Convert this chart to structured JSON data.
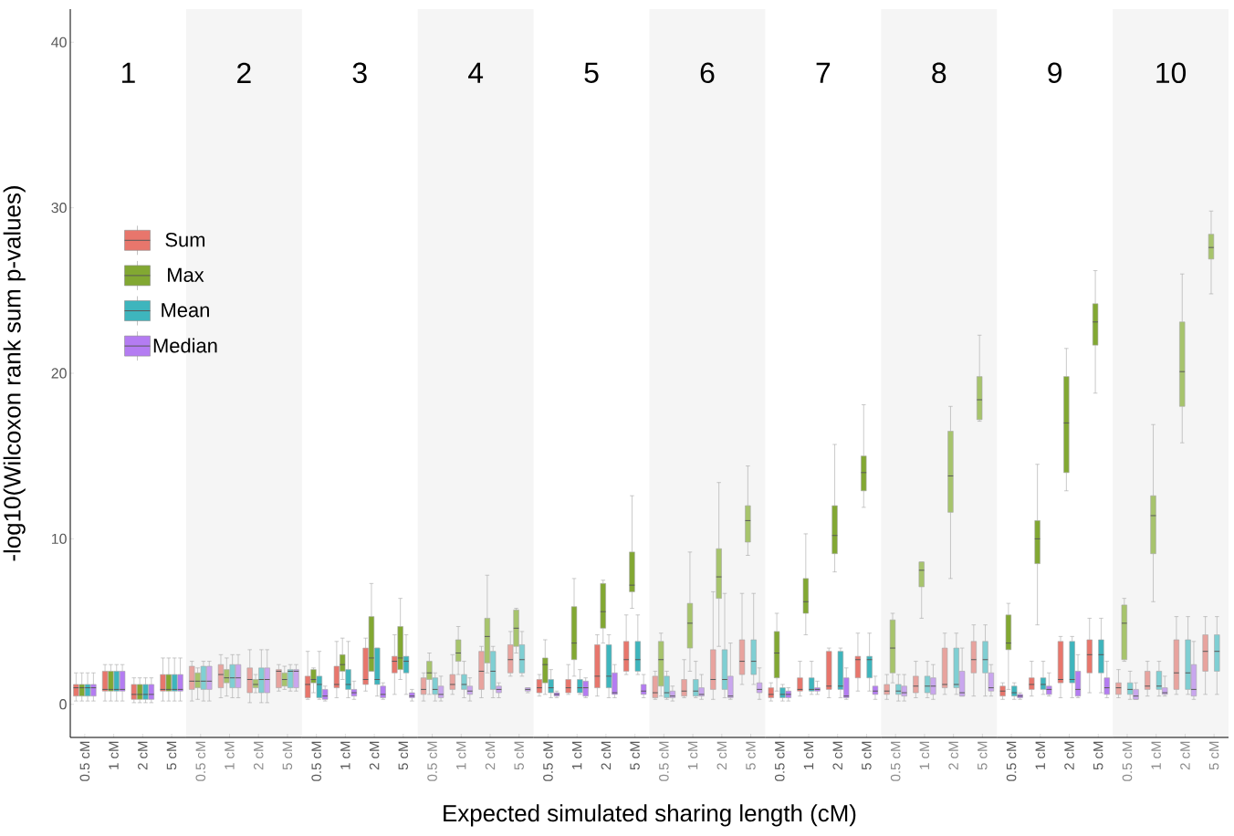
{
  "chart_data": [
    {
      "type": "box",
      "title": "1",
      "ylabel": "-log10(Wilcoxon rank sum p-values)",
      "categories": [
        "0.5 cM",
        "1 cM",
        "2 cM",
        "5 cM"
      ],
      "ylim": [
        -2,
        42
      ],
      "yticks": [
        0,
        10,
        20,
        30,
        40
      ],
      "legend": "right",
      "series": [
        {
          "name": "Sum",
          "color": "#e8766c",
          "boxes": [
            {
              "low": 0.2,
              "q1": 0.5,
              "median": 1.0,
              "q3": 1.2,
              "high": 1.9
            },
            {
              "low": 0.2,
              "q1": 0.8,
              "median": 0.9,
              "q3": 2.0,
              "high": 2.4
            },
            {
              "low": 0.1,
              "q1": 0.3,
              "median": 0.6,
              "q3": 1.2,
              "high": 1.6
            },
            {
              "low": 0.2,
              "q1": 0.8,
              "median": 0.9,
              "q3": 1.8,
              "high": 2.8
            }
          ]
        },
        {
          "name": "Max",
          "color": "#82a832",
          "boxes": [
            {
              "low": 0.2,
              "q1": 0.5,
              "median": 1.0,
              "q3": 1.2,
              "high": 1.9
            },
            {
              "low": 0.2,
              "q1": 0.8,
              "median": 0.9,
              "q3": 2.0,
              "high": 2.4
            },
            {
              "low": 0.1,
              "q1": 0.3,
              "median": 0.6,
              "q3": 1.2,
              "high": 1.6
            },
            {
              "low": 0.2,
              "q1": 0.8,
              "median": 0.9,
              "q3": 1.8,
              "high": 2.8
            }
          ]
        },
        {
          "name": "Mean",
          "color": "#3eb5bd",
          "boxes": [
            {
              "low": 0.2,
              "q1": 0.5,
              "median": 1.0,
              "q3": 1.2,
              "high": 1.9
            },
            {
              "low": 0.2,
              "q1": 0.8,
              "median": 0.9,
              "q3": 2.0,
              "high": 2.4
            },
            {
              "low": 0.1,
              "q1": 0.3,
              "median": 0.6,
              "q3": 1.2,
              "high": 1.6
            },
            {
              "low": 0.2,
              "q1": 0.8,
              "median": 0.9,
              "q3": 1.8,
              "high": 2.8
            }
          ]
        },
        {
          "name": "Median",
          "color": "#b47cf2",
          "boxes": [
            {
              "low": 0.2,
              "q1": 0.5,
              "median": 1.0,
              "q3": 1.2,
              "high": 1.9
            },
            {
              "low": 0.2,
              "q1": 0.8,
              "median": 0.9,
              "q3": 2.0,
              "high": 2.4
            },
            {
              "low": 0.1,
              "q1": 0.3,
              "median": 0.6,
              "q3": 1.2,
              "high": 1.6
            },
            {
              "low": 0.2,
              "q1": 0.8,
              "median": 0.9,
              "q3": 1.8,
              "high": 2.8
            }
          ]
        }
      ]
    },
    {
      "type": "box",
      "title": "2",
      "categories": [
        "0.5 cM",
        "1 cM",
        "2 cM",
        "5 cM"
      ],
      "ylim": [
        -2,
        42
      ],
      "yticks": [
        0,
        10,
        20,
        30,
        40
      ],
      "tick_labels": "x",
      "series": [
        {
          "color": "#e8a39e",
          "boxes": [
            {
              "low": 0.2,
              "q1": 0.9,
              "median": 1.4,
              "q3": 2.3,
              "high": 2.6
            },
            {
              "low": 0.4,
              "q1": 1.0,
              "median": 1.8,
              "q3": 2.4,
              "high": 3.0
            },
            {
              "low": 0.1,
              "q1": 0.7,
              "median": 1.5,
              "q3": 2.2,
              "high": 3.3
            },
            {
              "low": 0.8,
              "q1": 1.0,
              "median": 2.0,
              "q3": 2.1,
              "high": 2.4
            }
          ]
        },
        {
          "color": "#a7c46c",
          "boxes": [
            {
              "low": 0.3,
              "q1": 1.0,
              "median": 1.4,
              "q3": 1.9,
              "high": 2.2
            },
            {
              "low": 0.5,
              "q1": 1.3,
              "median": 1.6,
              "q3": 2.1,
              "high": 2.8
            },
            {
              "low": 0.7,
              "q1": 1.0,
              "median": 1.2,
              "q3": 1.5,
              "high": 1.8
            },
            {
              "low": 0.9,
              "q1": 1.1,
              "median": 1.5,
              "q3": 1.9,
              "high": 2.3
            }
          ]
        },
        {
          "color": "#7fcfd3",
          "boxes": [
            {
              "low": 0.2,
              "q1": 0.9,
              "median": 1.4,
              "q3": 2.3,
              "high": 2.6
            },
            {
              "low": 0.4,
              "q1": 1.0,
              "median": 1.6,
              "q3": 2.4,
              "high": 3.0
            },
            {
              "low": 0.1,
              "q1": 0.7,
              "median": 1.5,
              "q3": 2.2,
              "high": 3.3
            },
            {
              "low": 0.8,
              "q1": 1.0,
              "median": 2.0,
              "q3": 2.1,
              "high": 2.4
            }
          ]
        },
        {
          "color": "#c9a6ee",
          "boxes": [
            {
              "low": 0.2,
              "q1": 0.9,
              "median": 1.4,
              "q3": 2.3,
              "high": 2.6
            },
            {
              "low": 0.4,
              "q1": 1.0,
              "median": 1.6,
              "q3": 2.4,
              "high": 3.0
            },
            {
              "low": 0.1,
              "q1": 0.7,
              "median": 1.5,
              "q3": 2.2,
              "high": 3.3
            },
            {
              "low": 0.8,
              "q1": 1.0,
              "median": 2.0,
              "q3": 2.1,
              "high": 2.4
            }
          ]
        }
      ]
    },
    {
      "type": "box",
      "title": "3",
      "categories": [
        "0.5 cM",
        "1 cM",
        "2 cM",
        "5 cM"
      ],
      "ylim": [
        -2,
        42
      ],
      "yticks": [
        0,
        10,
        20,
        30,
        40
      ],
      "tick_labels": "x",
      "series": [
        {
          "color": "#e8766c",
          "boxes": [
            {
              "low": 0.3,
              "q1": 0.4,
              "median": 1.2,
              "q3": 1.7,
              "high": 3.2
            },
            {
              "low": 0.4,
              "q1": 1.0,
              "median": 1.2,
              "q3": 2.3,
              "high": 3.8
            },
            {
              "low": 0.8,
              "q1": 1.2,
              "median": 1.5,
              "q3": 3.4,
              "high": 4.0
            },
            {
              "low": 0.6,
              "q1": 1.9,
              "median": 2.6,
              "q3": 2.9,
              "high": 4.2
            }
          ]
        },
        {
          "color": "#82a832",
          "boxes": [
            {
              "low": 0.7,
              "q1": 1.3,
              "median": 1.5,
              "q3": 2.1,
              "high": 2.2
            },
            {
              "low": 1.5,
              "q1": 2.0,
              "median": 2.4,
              "q3": 3.0,
              "high": 4.0
            },
            {
              "low": 2.0,
              "q1": 2.0,
              "median": 2.8,
              "q3": 5.3,
              "high": 7.3
            },
            {
              "low": 1.5,
              "q1": 2.1,
              "median": 2.8,
              "q3": 4.7,
              "high": 6.4
            }
          ]
        },
        {
          "color": "#3eb5bd",
          "boxes": [
            {
              "low": 0.3,
              "q1": 0.4,
              "median": 1.2,
              "q3": 1.7,
              "high": 3.2
            },
            {
              "low": 0.4,
              "q1": 0.9,
              "median": 1.2,
              "q3": 2.1,
              "high": 3.8
            },
            {
              "low": 0.5,
              "q1": 1.2,
              "median": 1.5,
              "q3": 3.4,
              "high": 3.4
            },
            {
              "low": 0.6,
              "q1": 1.9,
              "median": 2.6,
              "q3": 2.9,
              "high": 4.2
            }
          ]
        },
        {
          "color": "#b47cf2",
          "boxes": [
            {
              "low": 0.2,
              "q1": 0.3,
              "median": 0.5,
              "q3": 0.9,
              "high": 1.1
            },
            {
              "low": 0.3,
              "q1": 0.5,
              "median": 0.7,
              "q3": 0.9,
              "high": 1.4
            },
            {
              "low": 0.3,
              "q1": 0.4,
              "median": 0.6,
              "q3": 1.1,
              "high": 1.3
            },
            {
              "low": 0.2,
              "q1": 0.4,
              "median": 0.5,
              "q3": 0.7,
              "high": 0.9
            }
          ]
        }
      ]
    },
    {
      "type": "box",
      "title": "4",
      "categories": [
        "0.5 cM",
        "1 cM",
        "2 cM",
        "5 cM"
      ],
      "ylim": [
        -2,
        42
      ],
      "yticks": [
        0,
        10,
        20,
        30,
        40
      ],
      "tick_labels": "x",
      "series": [
        {
          "color": "#e8a39e",
          "boxes": [
            {
              "low": 0.2,
              "q1": 0.6,
              "median": 0.9,
              "q3": 1.6,
              "high": 1.9
            },
            {
              "low": 0.6,
              "q1": 0.9,
              "median": 1.2,
              "q3": 1.8,
              "high": 3.0
            },
            {
              "low": 0.4,
              "q1": 0.9,
              "median": 2.0,
              "q3": 3.2,
              "high": 3.5
            },
            {
              "low": 1.7,
              "q1": 1.9,
              "median": 2.7,
              "q3": 3.6,
              "high": 4.4
            }
          ]
        },
        {
          "color": "#a7c46c",
          "boxes": [
            {
              "low": 0.6,
              "q1": 1.5,
              "median": 1.9,
              "q3": 2.6,
              "high": 3.1
            },
            {
              "low": 1.8,
              "q1": 2.6,
              "median": 3.1,
              "q3": 3.9,
              "high": 4.7
            },
            {
              "low": 1.9,
              "q1": 2.5,
              "median": 4.1,
              "q3": 5.2,
              "high": 7.8
            },
            {
              "low": 3.1,
              "q1": 3.5,
              "median": 4.6,
              "q3": 5.7,
              "high": 5.8
            }
          ]
        },
        {
          "color": "#7fcfd3",
          "boxes": [
            {
              "low": 0.2,
              "q1": 0.6,
              "median": 0.9,
              "q3": 1.6,
              "high": 1.9
            },
            {
              "low": 0.4,
              "q1": 0.9,
              "median": 1.2,
              "q3": 1.8,
              "high": 2.6
            },
            {
              "low": 0.4,
              "q1": 0.9,
              "median": 2.0,
              "q3": 3.2,
              "high": 3.5
            },
            {
              "low": 1.7,
              "q1": 1.9,
              "median": 2.7,
              "q3": 3.6,
              "high": 4.4
            }
          ]
        },
        {
          "color": "#c9a6ee",
          "boxes": [
            {
              "low": 0.2,
              "q1": 0.4,
              "median": 0.6,
              "q3": 1.1,
              "high": 1.7
            },
            {
              "low": 0.2,
              "q1": 0.6,
              "median": 0.8,
              "q3": 1.1,
              "high": 1.6
            },
            {
              "low": 0.4,
              "q1": 0.7,
              "median": 0.9,
              "q3": 1.1,
              "high": 1.3
            },
            {
              "low": 0.7,
              "q1": 0.8,
              "median": 0.9,
              "q3": 1.0,
              "high": 1.0
            }
          ]
        }
      ]
    },
    {
      "type": "box",
      "title": "5",
      "xlabel": "Expected simulated sharing length (cM)",
      "categories": [
        "0.5 cM",
        "1 cM",
        "2 cM",
        "5 cM"
      ],
      "ylim": [
        -2,
        42
      ],
      "yticks": [
        0,
        10,
        20,
        30,
        40
      ],
      "tick_labels": "x",
      "series": [
        {
          "color": "#e8766c",
          "boxes": [
            {
              "low": 0.5,
              "q1": 0.7,
              "median": 1.0,
              "q3": 1.5,
              "high": 1.8
            },
            {
              "low": 0.6,
              "q1": 0.7,
              "median": 1.0,
              "q3": 1.5,
              "high": 2.4
            },
            {
              "low": 0.5,
              "q1": 1.0,
              "median": 1.7,
              "q3": 3.6,
              "high": 4.2
            },
            {
              "low": 1.8,
              "q1": 2.0,
              "median": 2.7,
              "q3": 3.8,
              "high": 5.4
            }
          ]
        },
        {
          "color": "#82a832",
          "boxes": [
            {
              "low": 0.6,
              "q1": 1.3,
              "median": 2.4,
              "q3": 2.8,
              "high": 3.9
            },
            {
              "low": 1.7,
              "q1": 2.7,
              "median": 3.7,
              "q3": 5.9,
              "high": 7.6
            },
            {
              "low": 3.7,
              "q1": 4.6,
              "median": 5.6,
              "q3": 7.3,
              "high": 7.5
            },
            {
              "low": 5.8,
              "q1": 6.8,
              "median": 7.2,
              "q3": 9.2,
              "high": 12.6
            }
          ]
        },
        {
          "color": "#3eb5bd",
          "boxes": [
            {
              "low": 0.4,
              "q1": 0.7,
              "median": 1.0,
              "q3": 1.5,
              "high": 2.1
            },
            {
              "low": 0.6,
              "q1": 0.7,
              "median": 1.0,
              "q3": 1.5,
              "high": 2.1
            },
            {
              "low": 0.4,
              "q1": 1.0,
              "median": 1.7,
              "q3": 3.6,
              "high": 4.2
            },
            {
              "low": 1.8,
              "q1": 2.0,
              "median": 2.7,
              "q3": 3.8,
              "high": 5.4
            }
          ]
        },
        {
          "color": "#b47cf2",
          "boxes": [
            {
              "low": 0.4,
              "q1": 0.5,
              "median": 0.6,
              "q3": 0.7,
              "high": 0.8
            },
            {
              "low": 0.4,
              "q1": 0.5,
              "median": 1.0,
              "q3": 1.4,
              "high": 1.6
            },
            {
              "low": 0.4,
              "q1": 0.6,
              "median": 0.7,
              "q3": 1.9,
              "high": 2.4
            },
            {
              "low": 0.4,
              "q1": 0.6,
              "median": 0.8,
              "q3": 1.2,
              "high": 1.8
            }
          ]
        }
      ]
    },
    {
      "type": "box",
      "title": "6",
      "categories": [
        "0.5 cM",
        "1 cM",
        "2 cM",
        "5 cM"
      ],
      "ylim": [
        -2,
        42
      ],
      "yticks": [
        0,
        10,
        20,
        30,
        40
      ],
      "tick_labels": "x",
      "series": [
        {
          "color": "#e8a39e",
          "boxes": [
            {
              "low": 0.3,
              "q1": 0.4,
              "median": 0.7,
              "q3": 1.7,
              "high": 2.0
            },
            {
              "low": 0.4,
              "q1": 0.5,
              "median": 0.8,
              "q3": 1.5,
              "high": 2.7
            },
            {
              "low": 0.3,
              "q1": 0.9,
              "median": 1.5,
              "q3": 3.3,
              "high": 6.8
            },
            {
              "low": 1.2,
              "q1": 1.8,
              "median": 2.6,
              "q3": 3.9,
              "high": 6.7
            }
          ]
        },
        {
          "color": "#a7c46c",
          "boxes": [
            {
              "low": 0.5,
              "q1": 1.1,
              "median": 2.7,
              "q3": 3.8,
              "high": 4.3
            },
            {
              "low": 2.0,
              "q1": 3.4,
              "median": 4.9,
              "q3": 6.1,
              "high": 9.2
            },
            {
              "low": 3.5,
              "q1": 6.4,
              "median": 7.7,
              "q3": 9.4,
              "high": 13.4
            },
            {
              "low": 9.0,
              "q1": 9.8,
              "median": 11.1,
              "q3": 12.0,
              "high": 14.4
            }
          ]
        },
        {
          "color": "#7fcfd3",
          "boxes": [
            {
              "low": 0.3,
              "q1": 0.4,
              "median": 0.7,
              "q3": 1.7,
              "high": 2.0
            },
            {
              "low": 0.4,
              "q1": 0.5,
              "median": 0.8,
              "q3": 1.5,
              "high": 2.6
            },
            {
              "low": 0.4,
              "q1": 0.9,
              "median": 1.5,
              "q3": 3.3,
              "high": 6.7
            },
            {
              "low": 1.2,
              "q1": 1.8,
              "median": 2.6,
              "q3": 3.9,
              "high": 6.7
            }
          ]
        },
        {
          "color": "#c9a6ee",
          "boxes": [
            {
              "low": 0.2,
              "q1": 0.4,
              "median": 0.5,
              "q3": 0.8,
              "high": 1.1
            },
            {
              "low": 0.3,
              "q1": 0.5,
              "median": 0.6,
              "q3": 1.0,
              "high": 1.8
            },
            {
              "low": 0.3,
              "q1": 0.4,
              "median": 0.5,
              "q3": 1.7,
              "high": 3.7
            },
            {
              "low": 0.3,
              "q1": 0.7,
              "median": 0.9,
              "q3": 1.3,
              "high": 2.2
            }
          ]
        }
      ]
    },
    {
      "type": "box",
      "title": "7",
      "categories": [
        "0.5 cM",
        "1 cM",
        "2 cM",
        "5 cM"
      ],
      "ylim": [
        -2,
        42
      ],
      "yticks": [
        0,
        10,
        20,
        30,
        40
      ],
      "tick_labels": "x",
      "series": [
        {
          "color": "#e8766c",
          "boxes": [
            {
              "low": 0.2,
              "q1": 0.4,
              "median": 0.6,
              "q3": 1.0,
              "high": 1.3
            },
            {
              "low": 0.5,
              "q1": 0.8,
              "median": 0.9,
              "q3": 1.6,
              "high": 2.6
            },
            {
              "low": 0.4,
              "q1": 0.9,
              "median": 1.1,
              "q3": 3.2,
              "high": 3.4
            },
            {
              "low": 0.8,
              "q1": 1.6,
              "median": 2.7,
              "q3": 2.9,
              "high": 4.3
            }
          ]
        },
        {
          "color": "#82a832",
          "boxes": [
            {
              "low": 0.8,
              "q1": 1.6,
              "median": 3.1,
              "q3": 4.4,
              "high": 5.5
            },
            {
              "low": 4.2,
              "q1": 5.5,
              "median": 6.2,
              "q3": 7.6,
              "high": 10.3
            },
            {
              "low": 8.0,
              "q1": 9.1,
              "median": 10.2,
              "q3": 12.0,
              "high": 15.7
            },
            {
              "low": 11.9,
              "q1": 12.9,
              "median": 14.0,
              "q3": 15.0,
              "high": 18.1
            }
          ]
        },
        {
          "color": "#3eb5bd",
          "boxes": [
            {
              "low": 0.2,
              "q1": 0.4,
              "median": 0.6,
              "q3": 1.0,
              "high": 1.2
            },
            {
              "low": 0.6,
              "q1": 0.8,
              "median": 0.9,
              "q3": 1.6,
              "high": 2.6
            },
            {
              "low": 0.4,
              "q1": 0.9,
              "median": 1.1,
              "q3": 3.2,
              "high": 3.4
            },
            {
              "low": 0.8,
              "q1": 1.6,
              "median": 2.7,
              "q3": 2.9,
              "high": 4.3
            }
          ]
        },
        {
          "color": "#b47cf2",
          "boxes": [
            {
              "low": 0.2,
              "q1": 0.4,
              "median": 0.6,
              "q3": 0.8,
              "high": 1.0
            },
            {
              "low": 0.6,
              "q1": 0.8,
              "median": 0.9,
              "q3": 1.0,
              "high": 1.4
            },
            {
              "low": 0.3,
              "q1": 0.4,
              "median": 0.5,
              "q3": 1.6,
              "high": 2.2
            },
            {
              "low": 0.3,
              "q1": 0.6,
              "median": 0.8,
              "q3": 1.1,
              "high": 1.7
            }
          ]
        }
      ]
    },
    {
      "type": "box",
      "title": "8",
      "categories": [
        "0.5 cM",
        "1 cM",
        "2 cM",
        "5 cM"
      ],
      "ylim": [
        -2,
        42
      ],
      "yticks": [
        0,
        10,
        20,
        30,
        40
      ],
      "tick_labels": "x",
      "series": [
        {
          "color": "#e8a39e",
          "boxes": [
            {
              "low": 0.3,
              "q1": 0.6,
              "median": 0.8,
              "q3": 1.2,
              "high": 1.8
            },
            {
              "low": 0.4,
              "q1": 0.7,
              "median": 1.1,
              "q3": 1.7,
              "high": 2.6
            },
            {
              "low": 0.6,
              "q1": 1.0,
              "median": 1.2,
              "q3": 3.4,
              "high": 4.3
            },
            {
              "low": 0.5,
              "q1": 1.9,
              "median": 2.7,
              "q3": 3.8,
              "high": 4.8
            }
          ]
        },
        {
          "color": "#a7c46c",
          "boxes": [
            {
              "low": 1.3,
              "q1": 1.9,
              "median": 3.4,
              "q3": 5.1,
              "high": 5.5
            },
            {
              "low": 5.2,
              "q1": 7.1,
              "median": 8.1,
              "q3": 8.6,
              "high": 8.6
            },
            {
              "low": 7.6,
              "q1": 11.6,
              "median": 13.8,
              "q3": 16.5,
              "high": 18.0
            },
            {
              "low": 17.1,
              "q1": 17.2,
              "median": 18.4,
              "q3": 19.8,
              "high": 22.3
            }
          ]
        },
        {
          "color": "#7fcfd3",
          "boxes": [
            {
              "low": 0.2,
              "q1": 0.6,
              "median": 0.8,
              "q3": 1.2,
              "high": 1.8
            },
            {
              "low": 0.4,
              "q1": 0.7,
              "median": 1.1,
              "q3": 1.7,
              "high": 2.6
            },
            {
              "low": 0.6,
              "q1": 1.0,
              "median": 1.2,
              "q3": 3.4,
              "high": 4.3
            },
            {
              "low": 0.5,
              "q1": 1.9,
              "median": 2.7,
              "q3": 3.8,
              "high": 4.8
            }
          ]
        },
        {
          "color": "#c9a6ee",
          "boxes": [
            {
              "low": 0.2,
              "q1": 0.5,
              "median": 0.7,
              "q3": 1.1,
              "high": 1.8
            },
            {
              "low": 0.3,
              "q1": 0.6,
              "median": 1.1,
              "q3": 1.6,
              "high": 2.4
            },
            {
              "low": 0.5,
              "q1": 0.5,
              "median": 0.7,
              "q3": 2.0,
              "high": 3.4
            },
            {
              "low": 0.5,
              "q1": 0.8,
              "median": 1.0,
              "q3": 1.9,
              "high": 2.4
            }
          ]
        }
      ]
    },
    {
      "type": "box",
      "title": "9",
      "categories": [
        "0.5 cM",
        "1 cM",
        "2 cM",
        "5 cM"
      ],
      "ylim": [
        -2,
        42
      ],
      "yticks": [
        0,
        10,
        20,
        30,
        40
      ],
      "tick_labels": "x",
      "series": [
        {
          "color": "#e8766c",
          "boxes": [
            {
              "low": 0.3,
              "q1": 0.5,
              "median": 0.8,
              "q3": 1.1,
              "high": 1.3
            },
            {
              "low": 0.5,
              "q1": 0.9,
              "median": 1.2,
              "q3": 1.6,
              "high": 2.6
            },
            {
              "low": 0.4,
              "q1": 1.3,
              "median": 1.5,
              "q3": 3.8,
              "high": 4.1
            },
            {
              "low": 0.7,
              "q1": 1.9,
              "median": 3.0,
              "q3": 3.9,
              "high": 5.2
            }
          ]
        },
        {
          "color": "#82a832",
          "boxes": [
            {
              "low": 0.9,
              "q1": 3.3,
              "median": 3.7,
              "q3": 5.4,
              "high": 6.1
            },
            {
              "low": 4.8,
              "q1": 8.5,
              "median": 10.0,
              "q3": 11.1,
              "high": 14.5
            },
            {
              "low": 12.9,
              "q1": 14.0,
              "median": 17.0,
              "q3": 19.8,
              "high": 21.5
            },
            {
              "low": 18.8,
              "q1": 21.7,
              "median": 23.1,
              "q3": 24.2,
              "high": 26.2
            }
          ]
        },
        {
          "color": "#3eb5bd",
          "boxes": [
            {
              "low": 0.3,
              "q1": 0.5,
              "median": 0.7,
              "q3": 1.1,
              "high": 1.3
            },
            {
              "low": 0.6,
              "q1": 0.9,
              "median": 1.2,
              "q3": 1.6,
              "high": 2.6
            },
            {
              "low": 0.4,
              "q1": 1.3,
              "median": 1.5,
              "q3": 3.8,
              "high": 4.1
            },
            {
              "low": 0.7,
              "q1": 1.9,
              "median": 3.0,
              "q3": 3.9,
              "high": 5.2
            }
          ]
        },
        {
          "color": "#b47cf2",
          "boxes": [
            {
              "low": 0.3,
              "q1": 0.4,
              "median": 0.5,
              "q3": 0.6,
              "high": 0.7
            },
            {
              "low": 0.5,
              "q1": 0.6,
              "median": 0.9,
              "q3": 1.1,
              "high": 1.9
            },
            {
              "low": 0.4,
              "q1": 0.5,
              "median": 0.9,
              "q3": 2.0,
              "high": 3.0
            },
            {
              "low": 0.4,
              "q1": 0.6,
              "median": 1.0,
              "q3": 1.6,
              "high": 2.6
            }
          ]
        }
      ]
    },
    {
      "type": "box",
      "title": "10",
      "categories": [
        "0.5 cM",
        "1 cM",
        "2 cM",
        "5 cM"
      ],
      "ylim": [
        -2,
        42
      ],
      "yticks": [
        0,
        10,
        20,
        30,
        40
      ],
      "tick_labels": "x",
      "series": [
        {
          "color": "#e8a39e",
          "boxes": [
            {
              "low": 0.4,
              "q1": 0.6,
              "median": 1.0,
              "q3": 1.3,
              "high": 2.1
            },
            {
              "low": 0.5,
              "q1": 0.9,
              "median": 1.1,
              "q3": 2.0,
              "high": 2.6
            },
            {
              "low": 0.6,
              "q1": 0.9,
              "median": 1.9,
              "q3": 3.9,
              "high": 5.3
            },
            {
              "low": 0.6,
              "q1": 2.0,
              "median": 3.2,
              "q3": 4.2,
              "high": 5.3
            }
          ]
        },
        {
          "color": "#a7c46c",
          "boxes": [
            {
              "low": 2.6,
              "q1": 2.7,
              "median": 4.9,
              "q3": 6.0,
              "high": 6.4
            },
            {
              "low": 6.2,
              "q1": 9.1,
              "median": 11.4,
              "q3": 12.6,
              "high": 16.9
            },
            {
              "low": 15.8,
              "q1": 18.0,
              "median": 20.1,
              "q3": 23.1,
              "high": 26.0
            },
            {
              "low": 24.8,
              "q1": 26.9,
              "median": 27.6,
              "q3": 28.4,
              "high": 29.8
            }
          ]
        },
        {
          "color": "#7fcfd3",
          "boxes": [
            {
              "low": 0.3,
              "q1": 0.6,
              "median": 0.9,
              "q3": 1.3,
              "high": 2.0
            },
            {
              "low": 0.5,
              "q1": 0.9,
              "median": 1.1,
              "q3": 2.0,
              "high": 2.6
            },
            {
              "low": 0.6,
              "q1": 0.9,
              "median": 1.9,
              "q3": 3.9,
              "high": 5.3
            },
            {
              "low": 0.6,
              "q1": 2.0,
              "median": 3.2,
              "q3": 4.2,
              "high": 5.3
            }
          ]
        },
        {
          "color": "#c9a6ee",
          "boxes": [
            {
              "low": 0.3,
              "q1": 0.3,
              "median": 0.5,
              "q3": 0.9,
              "high": 1.3
            },
            {
              "low": 0.5,
              "q1": 0.6,
              "median": 0.7,
              "q3": 1.0,
              "high": 1.7
            },
            {
              "low": 0.3,
              "q1": 0.5,
              "median": 0.9,
              "q3": 2.4,
              "high": 3.8
            },
            null
          ]
        }
      ]
    }
  ]
}
